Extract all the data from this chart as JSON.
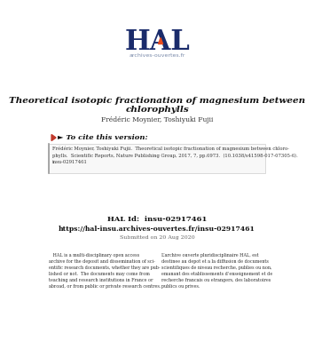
{
  "background_color": "#ffffff",
  "hal_logo_text": "HAL",
  "hal_logo_color": "#1a2b6b",
  "hal_sub_text": "archives-ouvertes.fr",
  "hal_sub_color": "#7a8aaa",
  "title_line1": "Theoretical isotopic fractionation of magnesium between",
  "title_line2": "chlorophylls",
  "authors": "Frédéric Moynier, Toshiyuki Fujii",
  "cite_header": "► To cite this version:",
  "cite_arrow_color": "#c0392b",
  "cite_text": "Frédéric Moynier, Toshiyuki Fujii.  Theoretical isotopic fractionation of magnesium between chloro-\nphylls.  Scientific Reports, Nature Publishing Group, 2017, 7, pp.6973.  ⟨10.1038/s41598-017-07305-6⟩.\ninsu-02917461",
  "hal_id_label": "HAL Id:",
  "hal_id_value": "insu-02917461",
  "hal_url": "https://hal-insu.archives-ouvertes.fr/insu-02917461",
  "submitted_text": "Submitted on 20 Aug 2020",
  "left_body": "   HAL is a multi-disciplinary open access\narchive for the deposit and dissemination of sci-\nentific research documents, whether they are pub-\nlished or not.  The documents may come from\nteaching and research institutions in France or\nabroad, or from public or private research centres.",
  "right_body": "L’archive ouverte pluridisciplinaire HAL, est\ndestinee au depot et a la diffusion de documents\nscientifiques de niveau recherche, publies ou non,\nemanant des etablissements d’enseignement et de\nrecherche francais ou etrangers, des laboratoires\npublics ou prives."
}
